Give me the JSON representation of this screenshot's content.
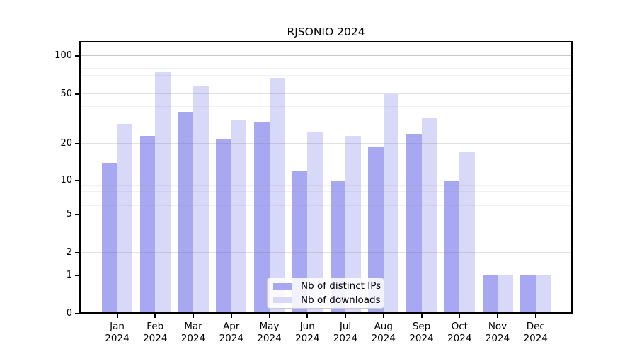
{
  "title": "RJSONIO 2024",
  "legend": {
    "items": [
      {
        "label": "Nb of distinct IPs"
      },
      {
        "label": "Nb of downloads"
      }
    ],
    "position": "bottom-center"
  },
  "chart_data": {
    "type": "bar",
    "title": "RJSONIO 2024",
    "xlabel": "",
    "ylabel": "",
    "categories": [
      "Jan",
      "Feb",
      "Mar",
      "Apr",
      "May",
      "Jun",
      "Jul",
      "Aug",
      "Sep",
      "Oct",
      "Nov",
      "Dec"
    ],
    "year": "2024",
    "series": [
      {
        "name": "Nb of distinct IPs",
        "color": "#a8a8f2",
        "values": [
          14,
          23,
          36,
          22,
          30,
          12,
          10,
          19,
          24,
          10,
          1,
          1
        ]
      },
      {
        "name": "Nb of downloads",
        "color": "#d8d8f8",
        "values": [
          29,
          74,
          58,
          31,
          67,
          25,
          23,
          50,
          32,
          17,
          1,
          1
        ]
      }
    ],
    "y_axis": {
      "scale": "log-like",
      "tick_values": [
        0,
        1,
        2,
        5,
        10,
        20,
        50,
        100
      ],
      "tick_labels": [
        "0",
        "1",
        "2",
        "5",
        "10",
        "20",
        "50",
        "100"
      ],
      "minor_gridline_values": [
        3,
        4,
        6,
        7,
        8,
        9,
        30,
        40,
        60,
        70,
        80,
        90
      ],
      "decade_gridline_values": [
        1,
        10,
        100
      ]
    },
    "grid": true,
    "grid_on_top": true,
    "legend_position": "bottom-center"
  }
}
